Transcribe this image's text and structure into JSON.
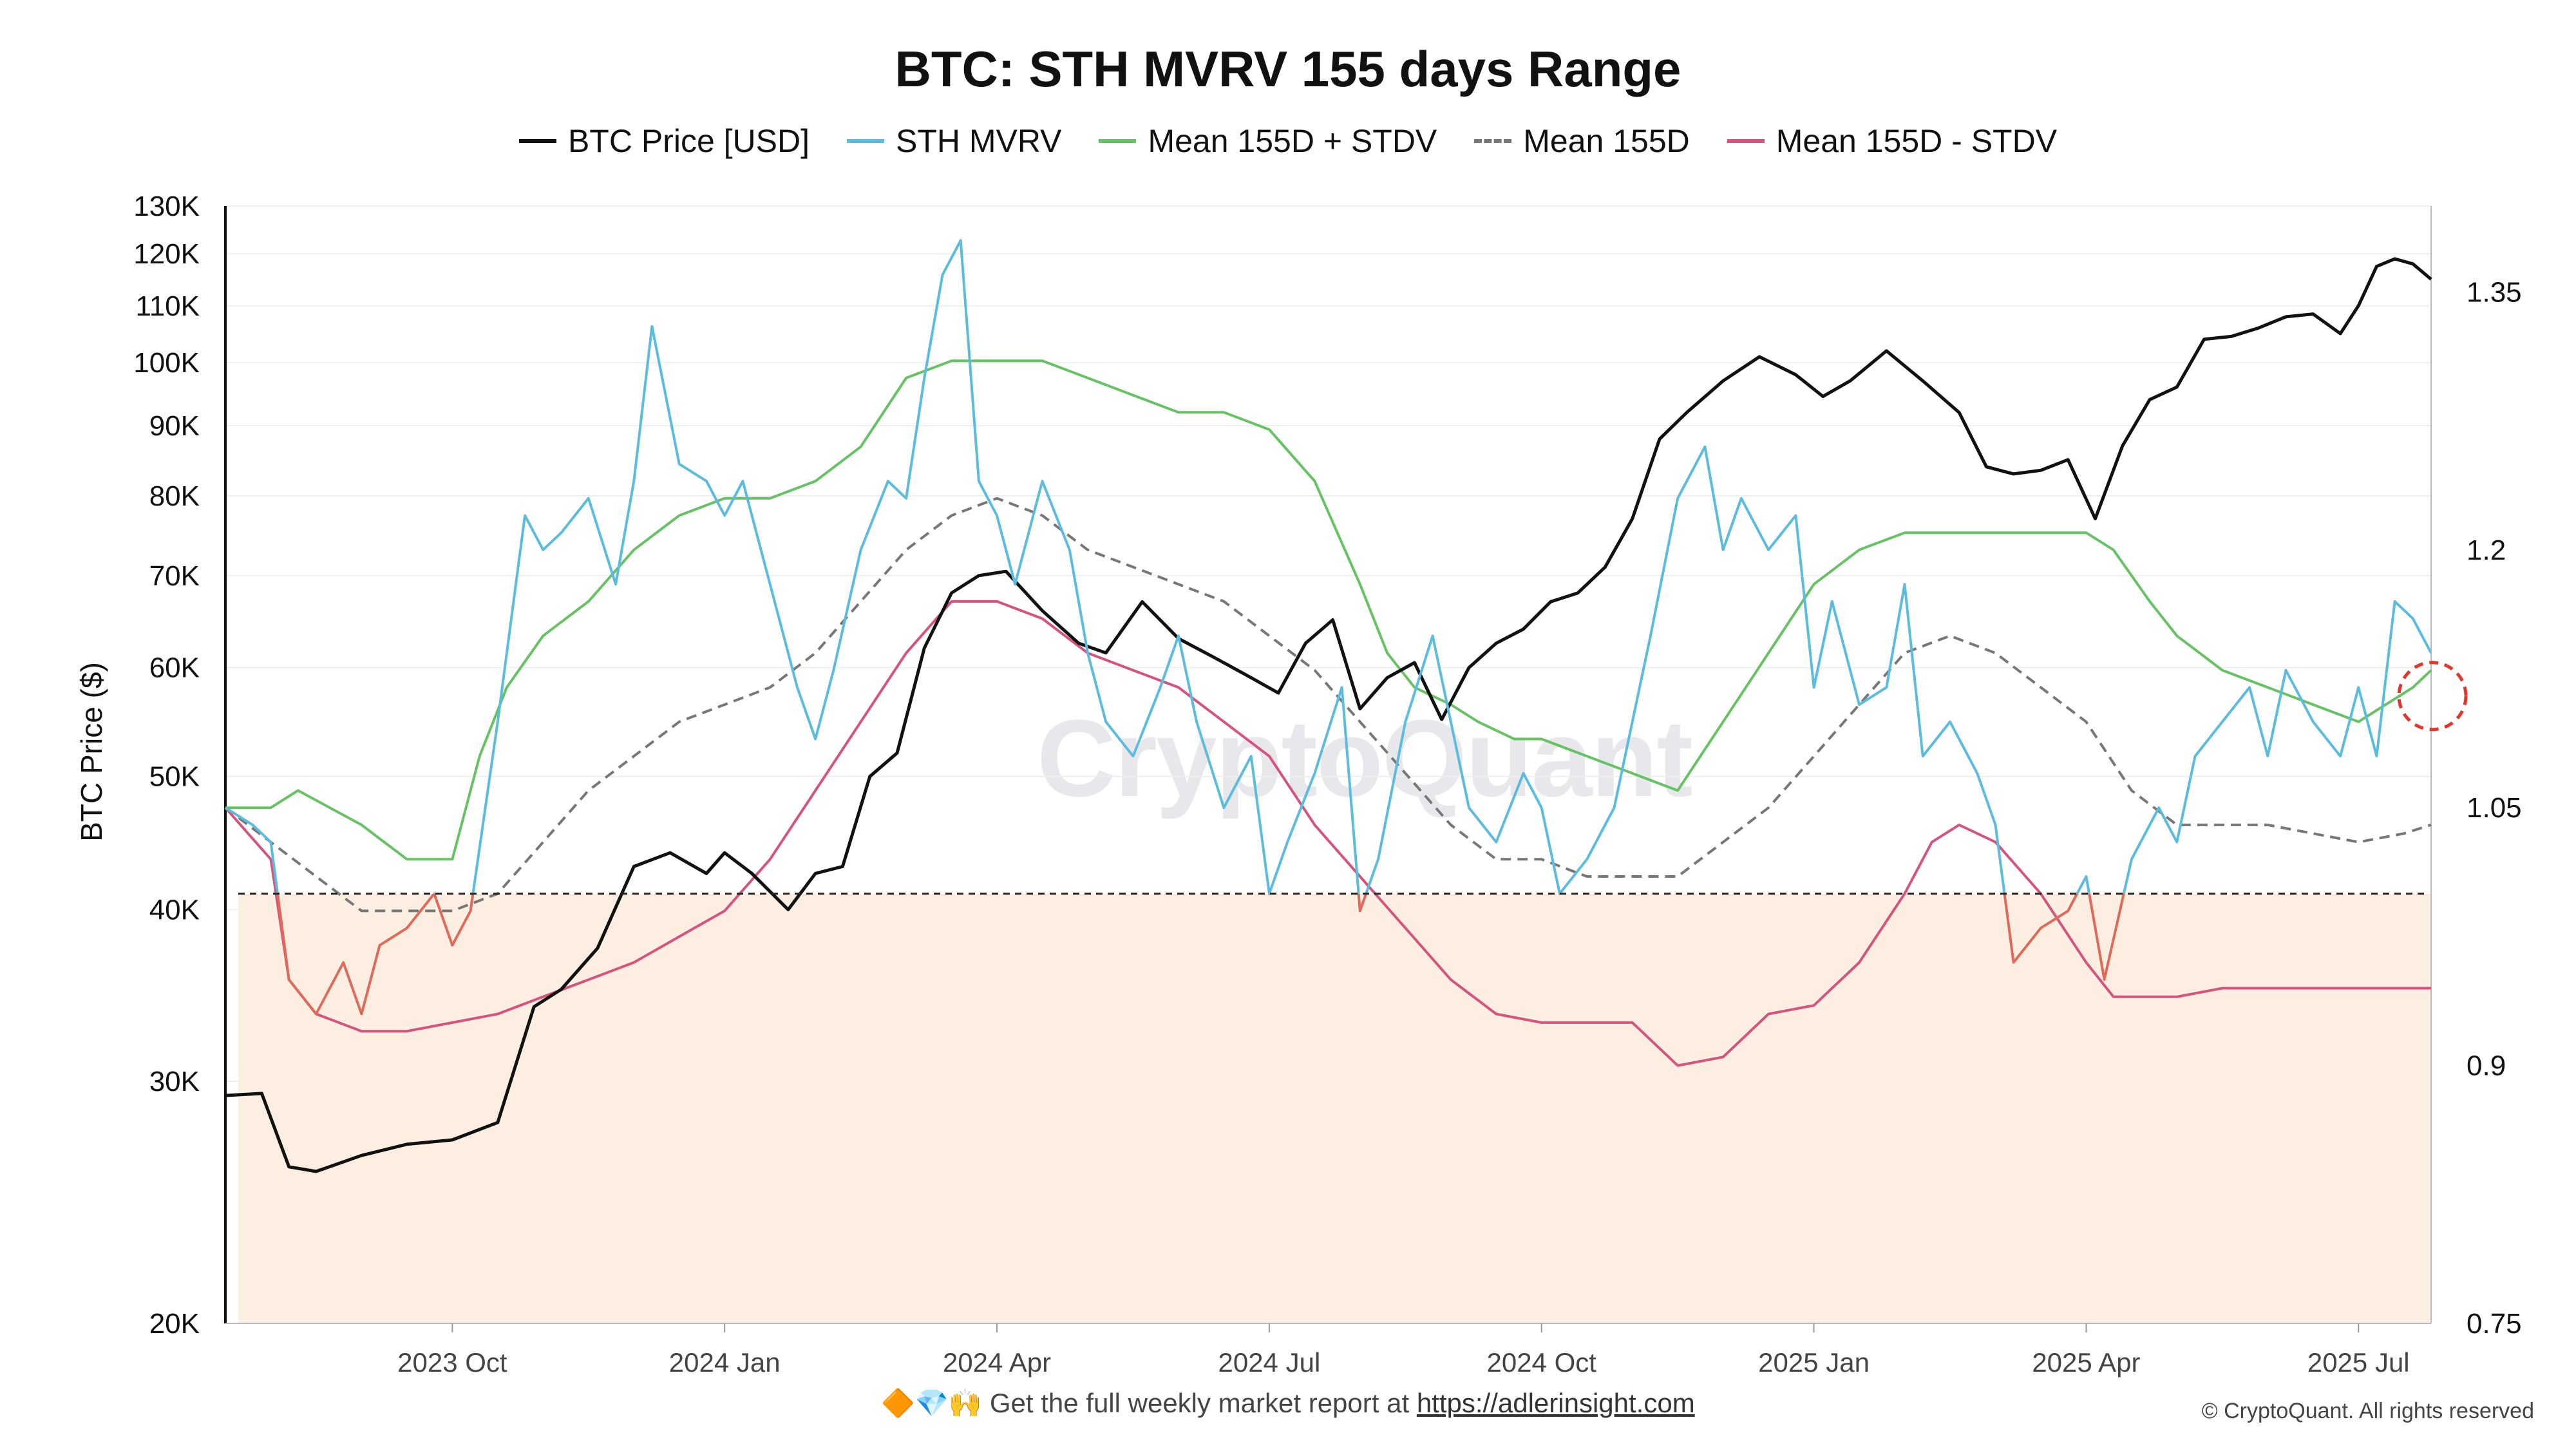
{
  "chart_data": {
    "type": "line",
    "title": "BTC: STH MVRV 155 days Range",
    "ylabel_left": "BTC Price ($)",
    "ylabel_right": "",
    "y_left_scale": "log",
    "y_left_range": [
      20000,
      130000
    ],
    "y_left_ticks": [
      {
        "value": 20000,
        "label": "20K"
      },
      {
        "value": 30000,
        "label": "30K"
      },
      {
        "value": 40000,
        "label": "40K"
      },
      {
        "value": 50000,
        "label": "50K"
      },
      {
        "value": 60000,
        "label": "60K"
      },
      {
        "value": 70000,
        "label": "70K"
      },
      {
        "value": 80000,
        "label": "80K"
      },
      {
        "value": 90000,
        "label": "90K"
      },
      {
        "value": 100000,
        "label": "100K"
      },
      {
        "value": 110000,
        "label": "110K"
      },
      {
        "value": 120000,
        "label": "120K"
      },
      {
        "value": 130000,
        "label": "130K"
      }
    ],
    "y_right_range": [
      0.75,
      1.4
    ],
    "y_right_ticks": [
      {
        "value": 0.75,
        "label": "0.75"
      },
      {
        "value": 0.9,
        "label": "0.9"
      },
      {
        "value": 1.05,
        "label": "1.05"
      },
      {
        "value": 1.2,
        "label": "1.2"
      },
      {
        "value": 1.35,
        "label": "1.35"
      }
    ],
    "x_unit": "months since 2023-07-01",
    "x_range": [
      0.5,
      24.8
    ],
    "x_ticks": [
      {
        "value": 3,
        "label": "2023 Oct"
      },
      {
        "value": 6,
        "label": "2024 Jan"
      },
      {
        "value": 9,
        "label": "2024 Apr"
      },
      {
        "value": 12,
        "label": "2024 Jul"
      },
      {
        "value": 15,
        "label": "2024 Oct"
      },
      {
        "value": 18,
        "label": "2025 Jan"
      },
      {
        "value": 21,
        "label": "2025 Apr"
      },
      {
        "value": 24,
        "label": "2025 Jul"
      }
    ],
    "threshold": {
      "value": 1.0,
      "axis": "right",
      "label": ""
    },
    "highlight_point": {
      "x": 24.8,
      "y": 1.115,
      "axis": "right"
    },
    "legend_position": "top-center",
    "series": [
      {
        "name": "BTC Price [USD]",
        "axis": "left",
        "color": "#111111",
        "dash": false,
        "x": [
          0.5,
          0.9,
          1.2,
          1.5,
          2.0,
          2.5,
          3.0,
          3.5,
          3.9,
          4.2,
          4.6,
          5.0,
          5.4,
          5.8,
          6.0,
          6.3,
          6.7,
          7.0,
          7.3,
          7.6,
          7.9,
          8.2,
          8.5,
          8.8,
          9.1,
          9.5,
          9.9,
          10.2,
          10.6,
          11.0,
          11.4,
          11.8,
          12.1,
          12.4,
          12.7,
          13.0,
          13.3,
          13.6,
          13.9,
          14.2,
          14.5,
          14.8,
          15.1,
          15.4,
          15.7,
          16.0,
          16.3,
          16.6,
          17.0,
          17.4,
          17.8,
          18.1,
          18.4,
          18.8,
          19.2,
          19.6,
          19.9,
          20.2,
          20.5,
          20.8,
          21.1,
          21.4,
          21.7,
          22.0,
          22.3,
          22.6,
          22.9,
          23.2,
          23.5,
          23.8,
          24.0,
          24.2,
          24.4,
          24.6,
          24.8
        ],
        "y": [
          29300,
          29400,
          26000,
          25800,
          26500,
          27000,
          27200,
          28000,
          34000,
          35000,
          37500,
          43000,
          44000,
          42500,
          44000,
          42500,
          40000,
          42500,
          43000,
          50000,
          52000,
          62000,
          68000,
          70000,
          70500,
          66000,
          62500,
          61500,
          67000,
          63000,
          61000,
          59000,
          57500,
          62500,
          65000,
          56000,
          59000,
          60500,
          55000,
          60000,
          62500,
          64000,
          67000,
          68000,
          71000,
          77000,
          88000,
          92000,
          97000,
          101000,
          98000,
          94500,
          97000,
          102000,
          97000,
          92000,
          84000,
          83000,
          83500,
          85000,
          77000,
          87000,
          94000,
          96000,
          104000,
          104500,
          106000,
          108000,
          108500,
          105000,
          110000,
          117500,
          119000,
          118000,
          115000
        ]
      },
      {
        "name": "STH MVRV",
        "axis": "right",
        "color": "#5bbcdd",
        "dash": false,
        "x": [
          0.5,
          0.8,
          1.0,
          1.2,
          1.5,
          1.8,
          2.0,
          2.2,
          2.5,
          2.8,
          3.0,
          3.2,
          3.5,
          3.8,
          4.0,
          4.2,
          4.5,
          4.8,
          5.0,
          5.2,
          5.5,
          5.8,
          6.0,
          6.2,
          6.5,
          6.8,
          7.0,
          7.2,
          7.5,
          7.8,
          8.0,
          8.2,
          8.4,
          8.6,
          8.8,
          9.0,
          9.2,
          9.5,
          9.8,
          10.0,
          10.2,
          10.5,
          10.8,
          11.0,
          11.2,
          11.5,
          11.8,
          12.0,
          12.2,
          12.5,
          12.8,
          13.0,
          13.2,
          13.5,
          13.8,
          14.0,
          14.2,
          14.5,
          14.8,
          15.0,
          15.2,
          15.5,
          15.8,
          16.0,
          16.2,
          16.5,
          16.8,
          17.0,
          17.2,
          17.5,
          17.8,
          18.0,
          18.2,
          18.5,
          18.8,
          19.0,
          19.2,
          19.5,
          19.8,
          20.0,
          20.2,
          20.5,
          20.8,
          21.0,
          21.2,
          21.5,
          21.8,
          22.0,
          22.2,
          22.5,
          22.8,
          23.0,
          23.2,
          23.5,
          23.8,
          24.0,
          24.2,
          24.4,
          24.6,
          24.8
        ],
        "y": [
          1.05,
          1.04,
          1.03,
          0.95,
          0.93,
          0.96,
          0.93,
          0.97,
          0.98,
          1.0,
          0.97,
          0.99,
          1.1,
          1.22,
          1.2,
          1.21,
          1.23,
          1.18,
          1.24,
          1.33,
          1.25,
          1.24,
          1.22,
          1.24,
          1.18,
          1.12,
          1.09,
          1.13,
          1.2,
          1.24,
          1.23,
          1.3,
          1.36,
          1.38,
          1.24,
          1.22,
          1.18,
          1.24,
          1.2,
          1.14,
          1.1,
          1.08,
          1.12,
          1.15,
          1.1,
          1.05,
          1.08,
          1.0,
          1.03,
          1.07,
          1.12,
          0.99,
          1.02,
          1.1,
          1.15,
          1.1,
          1.05,
          1.03,
          1.07,
          1.05,
          1.0,
          1.02,
          1.05,
          1.1,
          1.15,
          1.23,
          1.26,
          1.2,
          1.23,
          1.2,
          1.22,
          1.12,
          1.17,
          1.11,
          1.12,
          1.18,
          1.08,
          1.1,
          1.07,
          1.04,
          0.96,
          0.98,
          0.99,
          1.01,
          0.95,
          1.02,
          1.05,
          1.03,
          1.08,
          1.1,
          1.12,
          1.08,
          1.13,
          1.1,
          1.08,
          1.12,
          1.08,
          1.17,
          1.16,
          1.14
        ]
      },
      {
        "name": "Mean 155D + STDV",
        "axis": "right",
        "color": "#66c264",
        "dash": false,
        "x": [
          0.5,
          1.0,
          1.3,
          2.0,
          2.5,
          3.0,
          3.3,
          3.6,
          4.0,
          4.5,
          5.0,
          5.5,
          6.0,
          6.5,
          7.0,
          7.5,
          8.0,
          8.5,
          9.0,
          9.5,
          10.0,
          10.5,
          11.0,
          11.5,
          12.0,
          12.5,
          13.0,
          13.3,
          13.6,
          14.0,
          14.3,
          14.7,
          15.0,
          15.5,
          16.0,
          16.5,
          17.0,
          17.5,
          18.0,
          18.5,
          19.0,
          19.5,
          20.0,
          20.5,
          21.0,
          21.3,
          21.7,
          22.0,
          22.5,
          23.0,
          23.5,
          24.0,
          24.3,
          24.6,
          24.8
        ],
        "y": [
          1.05,
          1.05,
          1.06,
          1.04,
          1.02,
          1.02,
          1.08,
          1.12,
          1.15,
          1.17,
          1.2,
          1.22,
          1.23,
          1.23,
          1.24,
          1.26,
          1.3,
          1.31,
          1.31,
          1.31,
          1.3,
          1.29,
          1.28,
          1.28,
          1.27,
          1.24,
          1.18,
          1.14,
          1.12,
          1.11,
          1.1,
          1.09,
          1.09,
          1.08,
          1.07,
          1.06,
          1.1,
          1.14,
          1.18,
          1.2,
          1.21,
          1.21,
          1.21,
          1.21,
          1.21,
          1.2,
          1.17,
          1.15,
          1.13,
          1.12,
          1.11,
          1.1,
          1.11,
          1.12,
          1.13
        ]
      },
      {
        "name": "Mean 155D",
        "axis": "right",
        "color": "#777777",
        "dash": true,
        "x": [
          0.5,
          1.0,
          1.5,
          2.0,
          2.5,
          3.0,
          3.5,
          4.0,
          4.5,
          5.0,
          5.5,
          6.0,
          6.5,
          7.0,
          7.5,
          8.0,
          8.5,
          9.0,
          9.5,
          10.0,
          10.5,
          11.0,
          11.5,
          12.0,
          12.5,
          13.0,
          13.5,
          14.0,
          14.5,
          15.0,
          15.5,
          16.0,
          16.5,
          17.0,
          17.5,
          18.0,
          18.5,
          19.0,
          19.5,
          20.0,
          20.5,
          21.0,
          21.5,
          22.0,
          22.5,
          23.0,
          23.5,
          24.0,
          24.5,
          24.8
        ],
        "y": [
          1.05,
          1.03,
          1.01,
          0.99,
          0.99,
          0.99,
          1.0,
          1.03,
          1.06,
          1.08,
          1.1,
          1.11,
          1.12,
          1.14,
          1.17,
          1.2,
          1.22,
          1.23,
          1.22,
          1.2,
          1.19,
          1.18,
          1.17,
          1.15,
          1.13,
          1.1,
          1.07,
          1.04,
          1.02,
          1.02,
          1.01,
          1.01,
          1.01,
          1.03,
          1.05,
          1.08,
          1.11,
          1.14,
          1.15,
          1.14,
          1.12,
          1.1,
          1.06,
          1.04,
          1.04,
          1.04,
          1.035,
          1.03,
          1.035,
          1.04
        ]
      },
      {
        "name": "Mean 155D - STDV",
        "axis": "right",
        "color": "#d6537e",
        "dash": false,
        "x": [
          0.5,
          1.0,
          1.2,
          1.5,
          2.0,
          2.5,
          3.0,
          3.5,
          4.0,
          4.5,
          5.0,
          5.5,
          6.0,
          6.5,
          7.0,
          7.5,
          8.0,
          8.5,
          9.0,
          9.5,
          10.0,
          10.5,
          11.0,
          11.5,
          12.0,
          12.5,
          13.0,
          13.5,
          14.0,
          14.5,
          15.0,
          15.5,
          16.0,
          16.5,
          17.0,
          17.5,
          18.0,
          18.5,
          19.0,
          19.3,
          19.6,
          20.0,
          20.5,
          21.0,
          21.3,
          21.6,
          22.0,
          22.5,
          23.0,
          23.5,
          24.0,
          24.5,
          24.8
        ],
        "y": [
          1.05,
          1.02,
          0.95,
          0.93,
          0.92,
          0.92,
          0.925,
          0.93,
          0.94,
          0.95,
          0.96,
          0.975,
          0.99,
          1.02,
          1.06,
          1.1,
          1.14,
          1.17,
          1.17,
          1.16,
          1.14,
          1.13,
          1.12,
          1.1,
          1.08,
          1.04,
          1.01,
          0.98,
          0.95,
          0.93,
          0.925,
          0.925,
          0.925,
          0.9,
          0.905,
          0.93,
          0.935,
          0.96,
          1.0,
          1.03,
          1.04,
          1.03,
          1.0,
          0.96,
          0.94,
          0.94,
          0.94,
          0.945,
          0.945,
          0.945,
          0.945,
          0.945,
          0.945
        ]
      }
    ]
  },
  "footer": {
    "emojis": "🔶💎🙌",
    "text": "Get the full weekly market report at",
    "link": "https://adlerinsight.com"
  },
  "watermark": "CryptoQuant",
  "copyright": "© CryptoQuant. All rights reserved",
  "colors": {
    "below_threshold": "#e06a5a",
    "shade": "#fdeee2",
    "highlight": "#e0362c"
  }
}
